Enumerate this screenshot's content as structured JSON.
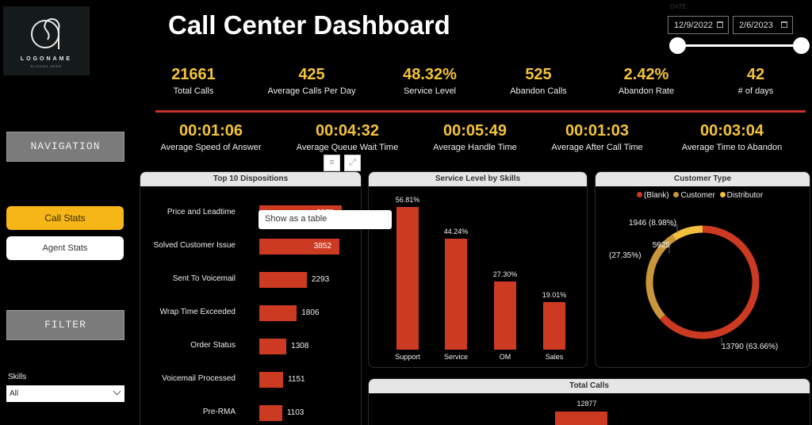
{
  "logo": {
    "name": "LOGONAME",
    "slogan": "SLOGAN HERE"
  },
  "header": {
    "title": "Call Center Dashboard"
  },
  "date_filter": {
    "label": "DATE",
    "start": "12/9/2022",
    "end": "2/6/2023",
    "range_fraction": [
      0,
      1
    ]
  },
  "kpis_row1": [
    {
      "value": "21661",
      "label": "Total Calls"
    },
    {
      "value": "425",
      "label": "Average Calls Per Day"
    },
    {
      "value": "48.32%",
      "label": "Service Level"
    },
    {
      "value": "525",
      "label": "Abandon Calls"
    },
    {
      "value": "2.42%",
      "label": "Abandon Rate"
    },
    {
      "value": "42",
      "label": "# of days"
    }
  ],
  "kpis_row2": [
    {
      "value": "00:01:06",
      "label": "Average Speed of Answer"
    },
    {
      "value": "00:04:32",
      "label": "Average Queue Wait Time"
    },
    {
      "value": "00:05:49",
      "label": "Average Handle Time"
    },
    {
      "value": "00:01:03",
      "label": "Average After Call Time"
    },
    {
      "value": "00:03:04",
      "label": "Average Time to Abandon"
    }
  ],
  "sidebar": {
    "navigation_label": "NAVIGATION",
    "nav_items": [
      {
        "label": "Call Stats",
        "active": true
      },
      {
        "label": "Agent Stats",
        "active": false
      }
    ],
    "filter_label": "FILTER",
    "skills_label": "Skills",
    "skills_value": "All"
  },
  "visual_header_icons": [
    "filter-icon",
    "focus-mode-icon"
  ],
  "tooltip": {
    "text": "Show as a table"
  },
  "colors": {
    "accent_yellow": "#f4c33a",
    "bar_red": "#cc3a22",
    "customer_gold": "#c9973a",
    "distributor_yellow": "#f2bf3e"
  },
  "chart_data": [
    {
      "type": "bar",
      "orientation": "horizontal",
      "title": "Top 10 Dispositions",
      "categories": [
        "Price and Leadtime",
        "Solved Customer Issue",
        "Sent To Voicemail",
        "Wrap Time Exceeded",
        "Order Status",
        "Voicemail Processed",
        "Pre-RMA"
      ],
      "values": [
        3979,
        3852,
        2293,
        1806,
        1308,
        1151,
        1103
      ],
      "value_labels": [
        "3979",
        "3852",
        "2293",
        "1806",
        "1308",
        "1151",
        "1103"
      ]
    },
    {
      "type": "bar",
      "title": "Service Level by Skills",
      "categories": [
        "Support",
        "Service",
        "OM",
        "Sales"
      ],
      "values": [
        56.81,
        44.24,
        27.3,
        19.01
      ],
      "value_labels": [
        "56.81%",
        "44.24%",
        "27.30%",
        "19.01%"
      ],
      "ylim": [
        0,
        60
      ]
    },
    {
      "type": "pie",
      "variant": "donut",
      "title": "Customer Type",
      "legend": [
        "(Blank)",
        "Customer",
        "Distributor"
      ],
      "legend_position": "top",
      "slices": [
        {
          "name": "(Blank)",
          "value": 13790,
          "label": "13790 (63.66%)"
        },
        {
          "name": "Customer",
          "value": 5925,
          "label_line1": "5925",
          "label_line2": "(27.35%)"
        },
        {
          "name": "Distributor",
          "value": 1946,
          "label": "1946 (8.98%)"
        }
      ]
    },
    {
      "type": "bar",
      "title": "Total Calls",
      "categories": [
        ""
      ],
      "values": [
        12877
      ],
      "value_labels": [
        "12877"
      ]
    }
  ]
}
